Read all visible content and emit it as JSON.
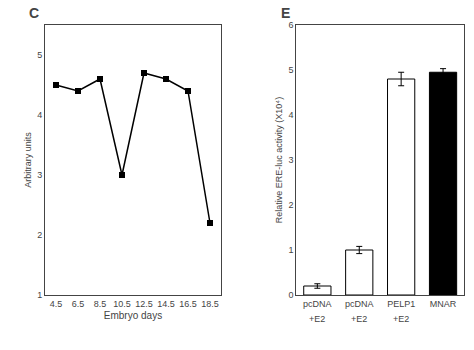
{
  "chart_data": [
    {
      "type": "line",
      "title": "C",
      "xlabel": "Embryo days",
      "ylabel": "Arbitrary units",
      "x": [
        4.5,
        6.5,
        8.5,
        10.5,
        12.5,
        14.5,
        16.5,
        18.5
      ],
      "values": [
        4.5,
        4.4,
        4.6,
        3.0,
        4.7,
        4.6,
        4.4,
        2.2
      ],
      "color": "black",
      "marker": "square",
      "line_style": "solid",
      "xlim": [
        3.5,
        19.5
      ],
      "xticks": [
        4.5,
        6.5,
        8.5,
        10.5,
        12.5,
        14.5,
        16.5,
        18.5
      ],
      "ylim": [
        1,
        5.5
      ],
      "yticks": [
        1,
        2,
        3,
        4,
        5
      ],
      "grid": false
    },
    {
      "type": "bar",
      "title": "E",
      "ylabel": "Relative ERE-luc activity (X10⁴)",
      "categories": [
        "pcDNA",
        "pcDNA",
        "PELP1",
        "MNAR"
      ],
      "values": [
        0.2,
        1.0,
        4.8,
        4.95
      ],
      "error": [
        0.05,
        0.08,
        0.15,
        0.08
      ],
      "colors": [
        "white",
        "white",
        "white",
        "black"
      ],
      "ylim": [
        0,
        6
      ],
      "yticks": [
        0,
        1,
        2,
        3,
        4,
        5,
        6
      ],
      "annotations": [
        {
          "text": "+E2",
          "x": 0
        },
        {
          "text": "+E2",
          "x": 1
        },
        {
          "text": "+E2",
          "x": 2
        }
      ],
      "grid": false
    }
  ]
}
